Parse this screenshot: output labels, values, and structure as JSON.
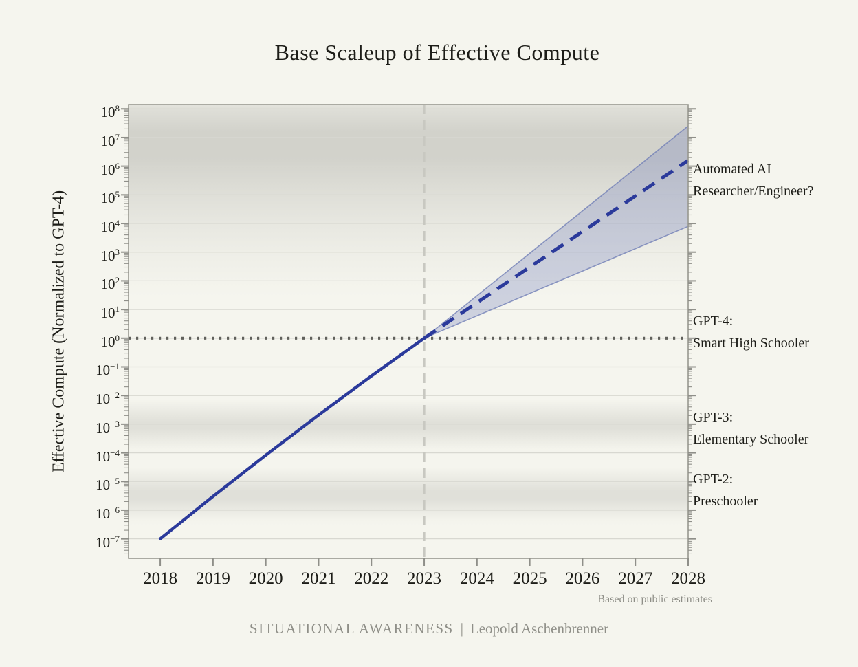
{
  "chart": {
    "title": "Base Scaleup of Effective Compute",
    "y_axis_title": "Effective Compute (Normalized to GPT-4)",
    "source_note": "Based on public estimates",
    "footer_brand": "SITUATIONAL AWARENESS",
    "footer_separator": "|",
    "footer_author": "Leopold Aschenbrenner"
  },
  "colors": {
    "page_bg": "#f5f5ee",
    "ink": "#1d1d18",
    "muted": "#8d8d86",
    "series_navy": "#2b3a9b",
    "band_fill": "rgba(125,138,190,0.33)",
    "band_edge": "rgba(114,127,182,0.8)",
    "gridline": "#d8d8d1",
    "frame": "#98988f",
    "tick": "#8f8f89",
    "dotted_reference": "#61615c",
    "dashed_vertical": "#c8c8c1",
    "shade_base": "#4a4a44"
  },
  "chart_data": {
    "type": "line",
    "title": "Base Scaleup of Effective Compute",
    "xlabel": "",
    "ylabel": "Effective Compute (Normalized to GPT-4)",
    "x_ticks": [
      2018,
      2019,
      2020,
      2021,
      2022,
      2023,
      2024,
      2025,
      2026,
      2027,
      2028
    ],
    "y_tick_exponents": [
      8,
      7,
      6,
      5,
      4,
      3,
      2,
      1,
      0,
      -1,
      -2,
      -3,
      -4,
      -5,
      -6,
      -7
    ],
    "xlim": [
      2017.4,
      2028
    ],
    "ylim_log10": [
      -7.68,
      8.15
    ],
    "y_scale": "log",
    "grid": "horizontal decade gridlines only",
    "legend": "none",
    "series": [
      {
        "name": "Historical effective compute (solid)",
        "style": "solid",
        "points_year_log10": [
          [
            2018,
            -7.0
          ],
          [
            2018.5,
            -6.26
          ],
          [
            2019,
            -5.52
          ],
          [
            2019.5,
            -4.8
          ],
          [
            2020,
            -4.08
          ],
          [
            2020.5,
            -3.38
          ],
          [
            2021,
            -2.68
          ],
          [
            2021.5,
            -2.0
          ],
          [
            2022,
            -1.32
          ],
          [
            2022.5,
            -0.66
          ],
          [
            2023,
            0
          ]
        ]
      },
      {
        "name": "Projected effective compute (dashed)",
        "style": "dashed",
        "points_year_log10": [
          [
            2023,
            0
          ],
          [
            2028,
            6.2
          ]
        ]
      }
    ],
    "uncertainty_band": {
      "upper_year_log10": [
        [
          2023,
          0
        ],
        [
          2028,
          7.4
        ]
      ],
      "lower_year_log10": [
        [
          2023,
          0
        ],
        [
          2028,
          3.9
        ]
      ]
    },
    "reference_lines": {
      "horizontal_dotted": {
        "value_log10": 0,
        "meaning": "GPT-4 level"
      },
      "vertical_dashed": {
        "year": 2023
      }
    },
    "shaded_bands": [
      {
        "name": "automated-ai-region",
        "stops_log10_alpha": [
          [
            8.15,
            0.1
          ],
          [
            8.0,
            0.13
          ],
          [
            7.2,
            0.205
          ],
          [
            6.3,
            0.205
          ],
          [
            5.0,
            0.13
          ],
          [
            4.0,
            0.08
          ],
          [
            3.0,
            0.042
          ],
          [
            2.0,
            0.012
          ],
          [
            1.4,
            0
          ]
        ]
      },
      {
        "name": "gpt3-region",
        "stops_log10_alpha": [
          [
            -2.15,
            0
          ],
          [
            -2.95,
            0.125
          ],
          [
            -3.15,
            0.125
          ],
          [
            -3.85,
            0.01
          ],
          [
            -4.05,
            0
          ]
        ]
      },
      {
        "name": "gpt2-region",
        "stops_log10_alpha": [
          [
            -4.5,
            0
          ],
          [
            -5.35,
            0.125
          ],
          [
            -5.6,
            0.125
          ],
          [
            -6.35,
            0.01
          ],
          [
            -6.55,
            0
          ]
        ]
      }
    ],
    "annotations": [
      {
        "id": "automated-ai",
        "lines": [
          "Automated AI",
          "Researcher/Engineer?"
        ],
        "anchor_top_log10": 6.28
      },
      {
        "id": "gpt4",
        "lines": [
          "GPT-4:",
          "Smart High Schooler"
        ],
        "anchor_top_log10": 0.98
      },
      {
        "id": "gpt3",
        "lines": [
          "GPT-3:",
          "Elementary Schooler"
        ],
        "anchor_top_log10": -2.38
      },
      {
        "id": "gpt2",
        "lines": [
          "GPT-2:",
          "Preschooler"
        ],
        "anchor_top_log10": -4.54
      }
    ]
  }
}
